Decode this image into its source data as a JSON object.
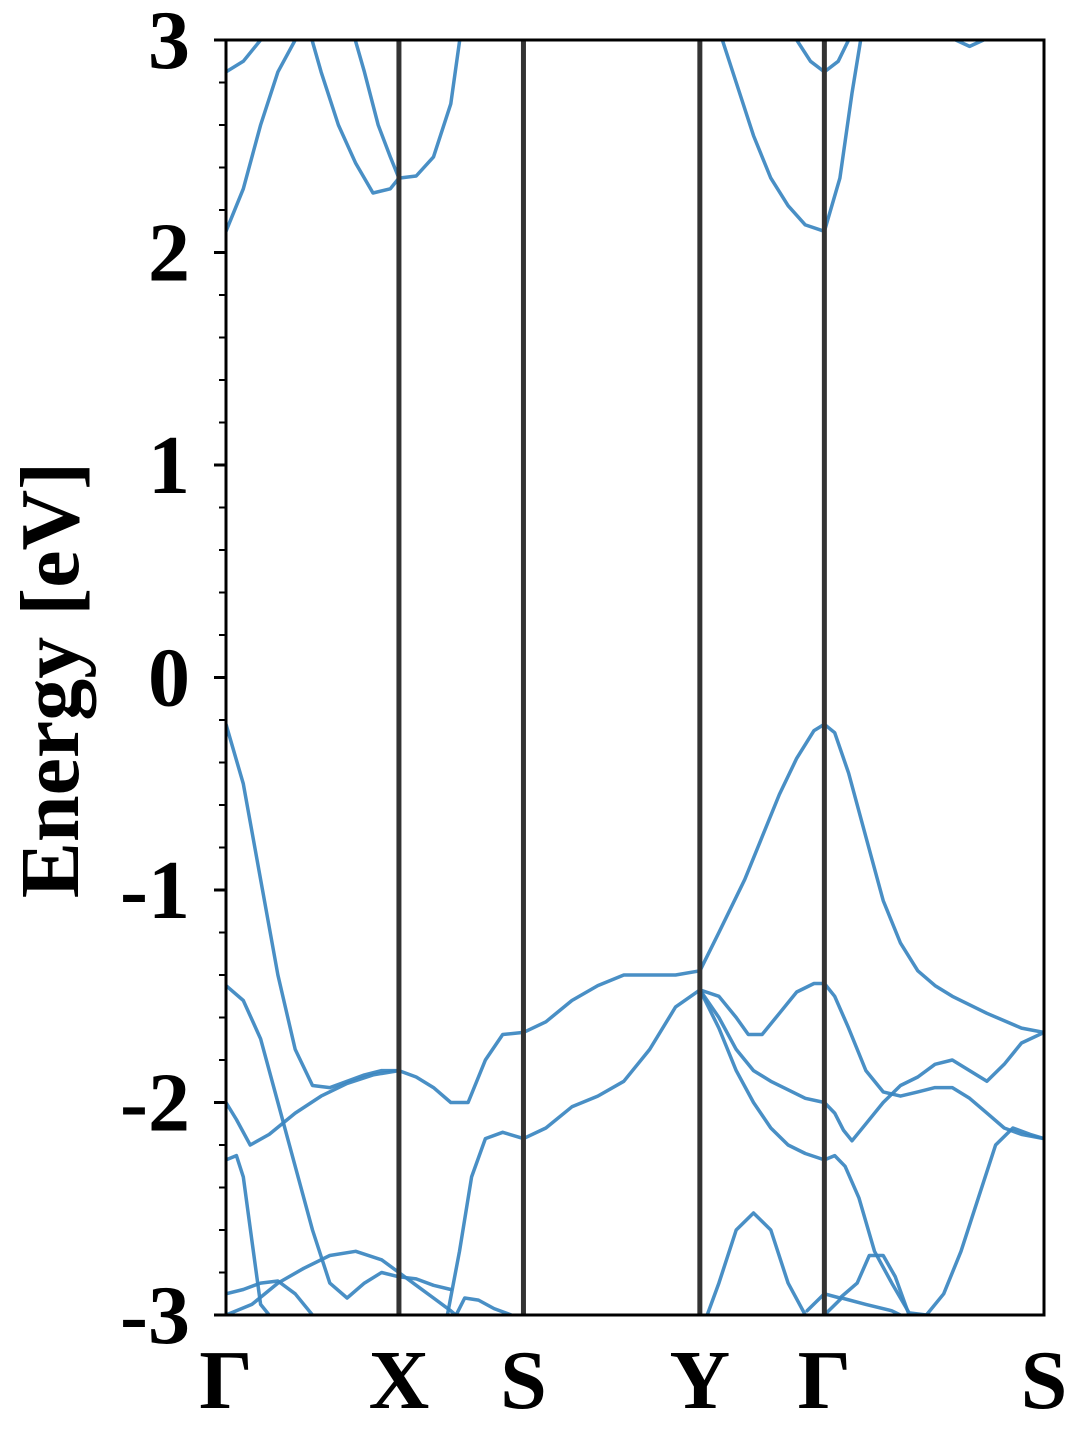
{
  "chart_data": {
    "type": "line",
    "title": "",
    "xlabel": "",
    "ylabel": "Energy [eV]",
    "ylim": [
      -3,
      3
    ],
    "xlim": [
      0,
      4.73
    ],
    "yticks": [
      -3,
      -2,
      -1,
      0,
      1,
      2,
      3
    ],
    "ytick_labels": [
      "-3",
      "-2",
      "-1",
      "0",
      "1",
      "2",
      "3"
    ],
    "yminor_step": 0.2,
    "kpoints": [
      {
        "label": "Γ",
        "x": 0
      },
      {
        "label": "X",
        "x": 1.0
      },
      {
        "label": "S",
        "x": 1.72
      },
      {
        "label": "Y",
        "x": 2.74
      },
      {
        "label": "Γ",
        "x": 3.46
      },
      {
        "label": "S",
        "x": 4.73
      }
    ],
    "grid": false,
    "legend": "none",
    "line_color": "#3a86c0",
    "kline_color": "#333333",
    "series": [
      {
        "x": [
          0,
          0.1,
          0.2,
          0.3,
          0.4,
          0.5,
          0.58
        ],
        "y": [
          2.1,
          2.3,
          2.6,
          2.85,
          3.0,
          3.05,
          3.1
        ]
      },
      {
        "x": [
          0,
          0.1,
          0.2,
          0.24
        ],
        "y": [
          2.85,
          2.9,
          3.0,
          3.05
        ]
      },
      {
        "x": [
          0.48,
          0.55,
          0.65,
          0.75,
          0.85,
          0.95,
          1.0,
          1.1,
          1.2,
          1.3,
          1.36
        ],
        "y": [
          3.05,
          2.85,
          2.6,
          2.42,
          2.28,
          2.3,
          2.35,
          2.36,
          2.45,
          2.7,
          3.05
        ]
      },
      {
        "x": [
          0.73,
          0.8,
          0.88,
          0.95,
          1.0
        ],
        "y": [
          3.05,
          2.85,
          2.6,
          2.45,
          2.35
        ]
      },
      {
        "x": [
          2.85,
          2.95,
          3.05,
          3.15,
          3.25,
          3.35,
          3.46,
          3.55,
          3.62,
          3.68
        ],
        "y": [
          3.05,
          2.8,
          2.55,
          2.35,
          2.22,
          2.13,
          2.1,
          2.35,
          2.75,
          3.05
        ]
      },
      {
        "x": [
          3.3,
          3.38,
          3.46,
          3.54,
          3.6
        ],
        "y": [
          3.0,
          2.9,
          2.85,
          2.9,
          3.0
        ]
      },
      {
        "x": [
          4.22,
          4.3,
          4.38
        ],
        "y": [
          3.0,
          2.97,
          3.0
        ]
      },
      {
        "x": [
          0,
          0.1,
          0.2,
          0.3,
          0.4,
          0.5,
          0.6,
          0.7,
          0.8,
          0.9,
          1.0,
          1.1,
          1.2,
          1.3,
          1.4,
          1.5,
          1.6,
          1.72,
          1.85,
          2.0,
          2.15,
          2.3,
          2.45,
          2.6,
          2.74
        ],
        "y": [
          -0.22,
          -0.5,
          -0.95,
          -1.4,
          -1.75,
          -1.92,
          -1.93,
          -1.9,
          -1.87,
          -1.85,
          -1.85,
          -1.88,
          -1.93,
          -2.0,
          -2.0,
          -1.8,
          -1.68,
          -1.67,
          -1.62,
          -1.52,
          -1.45,
          -1.4,
          -1.4,
          -1.4,
          -1.38
        ]
      },
      {
        "x": [
          2.74,
          2.85,
          3.0,
          3.1,
          3.2,
          3.3,
          3.4,
          3.46,
          3.52,
          3.6,
          3.7,
          3.8,
          3.9,
          4.0,
          4.1,
          4.2,
          4.4,
          4.6,
          4.73
        ],
        "y": [
          -1.38,
          -1.2,
          -0.95,
          -0.75,
          -0.55,
          -0.38,
          -0.25,
          -0.22,
          -0.26,
          -0.45,
          -0.75,
          -1.05,
          -1.25,
          -1.38,
          -1.45,
          -1.5,
          -1.58,
          -1.65,
          -1.67
        ]
      },
      {
        "x": [
          0,
          0.1,
          0.2,
          0.3,
          0.4,
          0.5,
          0.6,
          0.7,
          0.8,
          0.9,
          1.0,
          1.1,
          1.2,
          1.3
        ],
        "y": [
          -1.45,
          -1.52,
          -1.7,
          -2.0,
          -2.3,
          -2.6,
          -2.85,
          -2.92,
          -2.85,
          -2.8,
          -2.82,
          -2.83,
          -2.86,
          -2.88
        ]
      },
      {
        "x": [
          0,
          0.06,
          0.14,
          0.25,
          0.4,
          0.55,
          0.7,
          0.85,
          1.0
        ],
        "y": [
          -2.0,
          -2.08,
          -2.2,
          -2.15,
          -2.05,
          -1.97,
          -1.91,
          -1.87,
          -1.85
        ]
      },
      {
        "x": [
          1.28,
          1.35,
          1.42,
          1.5,
          1.6,
          1.72,
          1.85,
          2.0,
          2.15,
          2.3,
          2.45,
          2.6,
          2.74
        ],
        "y": [
          -3.0,
          -2.7,
          -2.35,
          -2.17,
          -2.14,
          -2.17,
          -2.12,
          -2.02,
          -1.97,
          -1.9,
          -1.75,
          -1.55,
          -1.47
        ]
      },
      {
        "x": [
          2.74,
          2.85,
          2.95,
          3.05,
          3.15,
          3.25,
          3.35,
          3.46,
          3.52,
          3.57,
          3.62,
          3.7,
          3.8,
          3.9,
          4.0,
          4.1,
          4.2,
          4.3,
          4.4,
          4.5,
          4.6,
          4.73
        ],
        "y": [
          -1.47,
          -1.6,
          -1.75,
          -1.85,
          -1.9,
          -1.94,
          -1.98,
          -2.0,
          -2.05,
          -2.13,
          -2.18,
          -2.1,
          -2.0,
          -1.92,
          -1.88,
          -1.82,
          -1.8,
          -1.85,
          -1.9,
          -1.82,
          -1.72,
          -1.67
        ]
      },
      {
        "x": [
          2.74,
          2.85,
          2.95,
          3.02,
          3.1,
          3.2,
          3.3,
          3.4,
          3.46,
          3.52,
          3.6,
          3.7,
          3.8,
          3.9,
          4.0,
          4.1,
          4.2,
          4.3,
          4.4,
          4.5,
          4.6,
          4.73
        ],
        "y": [
          -1.47,
          -1.5,
          -1.6,
          -1.68,
          -1.68,
          -1.58,
          -1.48,
          -1.44,
          -1.44,
          -1.5,
          -1.65,
          -1.85,
          -1.95,
          -1.97,
          -1.95,
          -1.93,
          -1.93,
          -1.98,
          -2.05,
          -2.12,
          -2.15,
          -2.17
        ]
      },
      {
        "x": [
          2.74,
          2.85,
          2.95,
          3.05,
          3.15,
          3.25,
          3.35,
          3.46,
          3.52,
          3.58,
          3.66,
          3.75,
          3.85,
          3.95,
          4.05
        ],
        "y": [
          -1.47,
          -1.65,
          -1.85,
          -2.0,
          -2.12,
          -2.2,
          -2.24,
          -2.27,
          -2.25,
          -2.3,
          -2.45,
          -2.7,
          -2.85,
          -2.99,
          -3.0
        ]
      },
      {
        "x": [
          4.05,
          4.15,
          4.25,
          4.35,
          4.45,
          4.55,
          4.65,
          4.73
        ],
        "y": [
          -3.0,
          -2.9,
          -2.7,
          -2.45,
          -2.2,
          -2.12,
          -2.15,
          -2.17
        ]
      },
      {
        "x": [
          0,
          0.06,
          0.1,
          0.15,
          0.2,
          0.25,
          0.3
        ],
        "y": [
          -2.27,
          -2.25,
          -2.35,
          -2.65,
          -2.95,
          -3.0,
          -3.05
        ]
      },
      {
        "x": [
          0,
          0.15,
          0.3,
          0.45,
          0.6,
          0.75,
          0.9,
          1.0,
          1.1,
          1.2,
          1.3,
          1.4
        ],
        "y": [
          -3.0,
          -2.95,
          -2.85,
          -2.78,
          -2.72,
          -2.7,
          -2.74,
          -2.8,
          -2.86,
          -2.92,
          -2.98,
          -3.05
        ]
      },
      {
        "x": [
          0,
          0.1,
          0.2,
          0.3,
          0.4,
          0.55
        ],
        "y": [
          -2.9,
          -2.88,
          -2.85,
          -2.84,
          -2.9,
          -3.05
        ]
      },
      {
        "x": [
          1.3,
          1.38,
          1.46,
          1.55,
          1.65,
          1.72
        ],
        "y": [
          -3.05,
          -2.92,
          -2.93,
          -2.97,
          -3.0,
          -3.03
        ]
      },
      {
        "x": [
          2.76,
          2.85,
          2.95,
          3.05,
          3.15,
          3.25,
          3.35,
          3.42
        ],
        "y": [
          -3.05,
          -2.85,
          -2.6,
          -2.52,
          -2.6,
          -2.85,
          -3.0,
          -3.05
        ]
      },
      {
        "x": [
          3.36,
          3.46,
          3.55,
          3.65,
          3.72,
          3.8,
          3.87,
          3.95,
          4.02
        ],
        "y": [
          -2.98,
          -2.9,
          -2.92,
          -2.85,
          -2.72,
          -2.72,
          -2.82,
          -3.0,
          -3.05
        ]
      },
      {
        "x": [
          3.4,
          3.46,
          3.56,
          3.7,
          3.85,
          3.95,
          4.05
        ],
        "y": [
          -3.05,
          -3.0,
          -2.92,
          -2.95,
          -2.98,
          -3.02,
          -3.05
        ]
      }
    ]
  }
}
